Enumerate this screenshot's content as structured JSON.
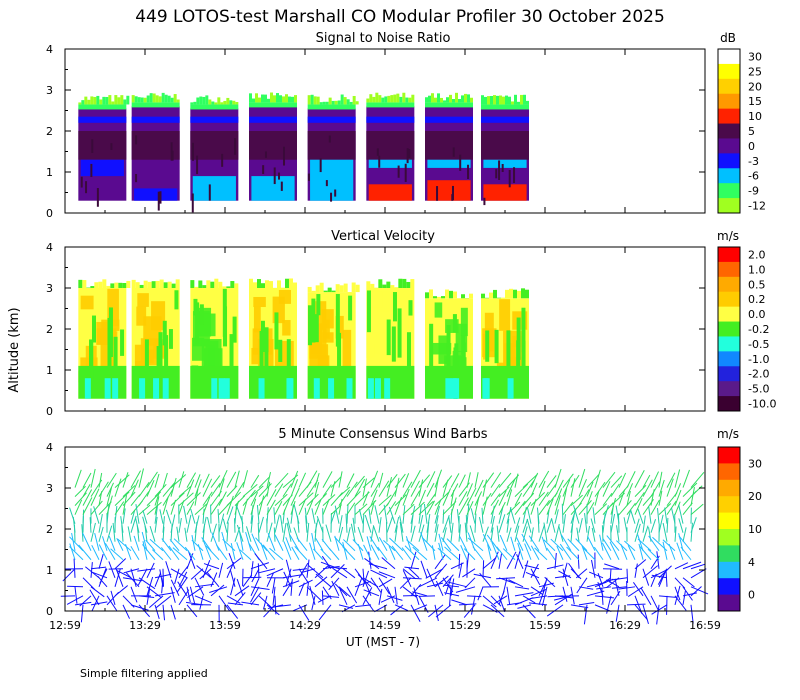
{
  "title": "449 LOTOS-test Marshall CO Modular Profiler 30 October 2025",
  "footnote": "Simple filtering applied",
  "xlabel": "UT  (MST - 7)",
  "time_ticks": [
    "12:59",
    "13:29",
    "13:59",
    "14:29",
    "14:59",
    "15:29",
    "15:59",
    "16:29",
    "16:59"
  ],
  "chart_data": [
    {
      "type": "heatmap",
      "id": "snr",
      "title": "Signal to Noise Ratio",
      "units": "dB",
      "ylabel": "Altitude (km)",
      "ylim": [
        0,
        4
      ],
      "yticks": [
        "0",
        "1",
        "2",
        "3",
        "4"
      ],
      "colorbar": {
        "labels": [
          "30",
          "25",
          "20",
          "15",
          "10",
          "5",
          "0",
          "-3",
          "-6",
          "-9",
          "-12"
        ],
        "colors": [
          "#ffffff",
          "#ffff00",
          "#ffd000",
          "#ff9900",
          "#ff2200",
          "#4a0a4a",
          "#5a0a90",
          "#1010ff",
          "#00c0ff",
          "#30ff60",
          "#a0ff20"
        ]
      },
      "segments": [
        {
          "start": "13:04",
          "end": "13:22",
          "top_km": 2.55,
          "low_layers": [
            {
              "from": 0.9,
              "to": 1.3,
              "value": "-3"
            }
          ]
        },
        {
          "start": "13:24",
          "end": "13:42",
          "top_km": 2.6,
          "low_layers": [
            {
              "from": 0.3,
              "to": 0.6,
              "value": "-3"
            }
          ]
        },
        {
          "start": "13:46",
          "end": "14:04",
          "top_km": 2.55,
          "low_layers": [
            {
              "from": 0.3,
              "to": 0.9,
              "value": "-6"
            }
          ]
        },
        {
          "start": "14:08",
          "end": "14:26",
          "top_km": 2.6,
          "low_layers": [
            {
              "from": 0.3,
              "to": 0.9,
              "value": "-6"
            }
          ]
        },
        {
          "start": "14:30",
          "end": "14:48",
          "top_km": 2.55,
          "low_layers": [
            {
              "from": 0.3,
              "to": 1.3,
              "value": "-6"
            }
          ]
        },
        {
          "start": "14:52",
          "end": "15:10",
          "top_km": 2.6,
          "low_layers": [
            {
              "from": 1.1,
              "to": 1.3,
              "value": "-6"
            },
            {
              "from": 0.3,
              "to": 0.7,
              "value": "10"
            }
          ]
        },
        {
          "start": "15:14",
          "end": "15:32",
          "top_km": 2.6,
          "low_layers": [
            {
              "from": 1.1,
              "to": 1.3,
              "value": "-6"
            },
            {
              "from": 0.3,
              "to": 0.8,
              "value": "10"
            }
          ]
        },
        {
          "start": "15:35",
          "end": "15:53",
          "top_km": 2.55,
          "low_layers": [
            {
              "from": 1.1,
              "to": 1.3,
              "value": "-6"
            },
            {
              "from": 0.3,
              "to": 0.7,
              "value": "10"
            }
          ]
        }
      ]
    },
    {
      "type": "heatmap",
      "id": "vv",
      "title": "Vertical Velocity",
      "units": "m/s",
      "ylabel": "Altitude (km)",
      "ylim": [
        0,
        4
      ],
      "yticks": [
        "0",
        "1",
        "2",
        "3",
        "4"
      ],
      "colorbar": {
        "labels": [
          "2.0",
          "1.0",
          "0.5",
          "0.2",
          "0.0",
          "-0.2",
          "-0.5",
          "-1.0",
          "-2.0",
          "-5.0",
          "-10.0"
        ],
        "colors": [
          "#ff0000",
          "#ff6600",
          "#ffaa00",
          "#ffcc00",
          "#ffff44",
          "#44ee22",
          "#22ffdd",
          "#1188ff",
          "#2222dd",
          "#5a1a8a",
          "#3a0030"
        ]
      },
      "segments_top_km": [
        3.0,
        3.0,
        3.0,
        3.0,
        2.9,
        3.0,
        2.75,
        2.75
      ],
      "dominant_values": [
        "0.2",
        "0.2",
        "-0.2",
        "0.2",
        "0.2",
        "0.0",
        "-0.2",
        "0.2"
      ]
    },
    {
      "type": "scatter",
      "id": "wind",
      "title": "5 Minute Consensus Wind Barbs",
      "units": "m/s",
      "ylabel": "Altitude (km)",
      "ylim": [
        0,
        4
      ],
      "yticks": [
        "0",
        "1",
        "2",
        "3",
        "4"
      ],
      "colorbar": {
        "labels": [
          "30",
          "20",
          "10",
          "4",
          "0"
        ],
        "colors": [
          "#ff0000",
          "#ff6600",
          "#ffaa00",
          "#ffd000",
          "#ffff00",
          "#a0ff20",
          "#30dd60",
          "#20bbff",
          "#1010ff",
          "#5a0a90"
        ]
      },
      "layers": [
        {
          "from_km": 2.2,
          "to_km": 3.2,
          "speed_ms": 12,
          "direction": "NW"
        },
        {
          "from_km": 1.6,
          "to_km": 2.2,
          "speed_ms": 8,
          "direction": "W"
        },
        {
          "from_km": 1.2,
          "to_km": 1.6,
          "speed_ms": 5,
          "direction": "SW"
        },
        {
          "from_km": 0.0,
          "to_km": 1.2,
          "speed_ms": 2,
          "direction": "variable"
        }
      ]
    }
  ]
}
